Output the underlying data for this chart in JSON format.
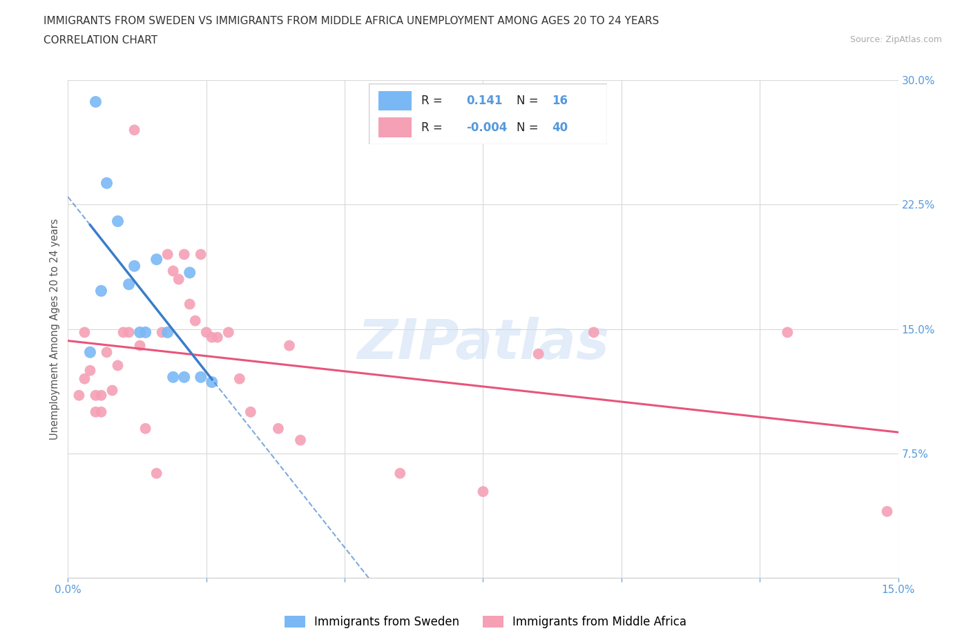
{
  "title_line1": "IMMIGRANTS FROM SWEDEN VS IMMIGRANTS FROM MIDDLE AFRICA UNEMPLOYMENT AMONG AGES 20 TO 24 YEARS",
  "title_line2": "CORRELATION CHART",
  "source_text": "Source: ZipAtlas.com",
  "ylabel": "Unemployment Among Ages 20 to 24 years",
  "xlim": [
    0.0,
    0.15
  ],
  "ylim": [
    0.0,
    0.3
  ],
  "xticks": [
    0.0,
    0.025,
    0.05,
    0.075,
    0.1,
    0.125,
    0.15
  ],
  "yticks": [
    0.0,
    0.075,
    0.15,
    0.225,
    0.3
  ],
  "xticklabels": [
    "0.0%",
    "",
    "",
    "",
    "",
    "",
    "15.0%"
  ],
  "yticklabels_right": [
    "",
    "7.5%",
    "15.0%",
    "22.5%",
    "30.0%"
  ],
  "color_sweden": "#7ab8f5",
  "color_sweden_line": "#3a7dc9",
  "color_africa": "#f5a0b5",
  "color_africa_line": "#e8547a",
  "watermark": "ZIPatlas",
  "legend_r_sweden": "0.141",
  "legend_n_sweden": "16",
  "legend_r_africa": "-0.004",
  "legend_n_africa": "40",
  "sweden_x": [
    0.004,
    0.005,
    0.006,
    0.007,
    0.009,
    0.011,
    0.012,
    0.013,
    0.014,
    0.016,
    0.018,
    0.019,
    0.021,
    0.022,
    0.024,
    0.026
  ],
  "sweden_y": [
    0.136,
    0.287,
    0.173,
    0.238,
    0.215,
    0.177,
    0.188,
    0.148,
    0.148,
    0.192,
    0.148,
    0.121,
    0.121,
    0.184,
    0.121,
    0.118
  ],
  "africa_x": [
    0.002,
    0.003,
    0.003,
    0.004,
    0.005,
    0.005,
    0.006,
    0.006,
    0.007,
    0.008,
    0.009,
    0.01,
    0.011,
    0.012,
    0.013,
    0.014,
    0.016,
    0.017,
    0.018,
    0.019,
    0.02,
    0.021,
    0.022,
    0.023,
    0.024,
    0.025,
    0.026,
    0.027,
    0.029,
    0.031,
    0.033,
    0.038,
    0.04,
    0.042,
    0.06,
    0.075,
    0.085,
    0.095,
    0.13,
    0.148
  ],
  "africa_y": [
    0.11,
    0.148,
    0.12,
    0.125,
    0.11,
    0.1,
    0.11,
    0.1,
    0.136,
    0.113,
    0.128,
    0.148,
    0.148,
    0.27,
    0.14,
    0.09,
    0.063,
    0.148,
    0.195,
    0.185,
    0.18,
    0.195,
    0.165,
    0.155,
    0.195,
    0.148,
    0.145,
    0.145,
    0.148,
    0.12,
    0.1,
    0.09,
    0.14,
    0.083,
    0.063,
    0.052,
    0.135,
    0.148,
    0.148,
    0.04
  ],
  "grid_color": "#d8d8d8",
  "background_color": "#ffffff",
  "text_color": "#333333",
  "axis_color": "#5599dd"
}
